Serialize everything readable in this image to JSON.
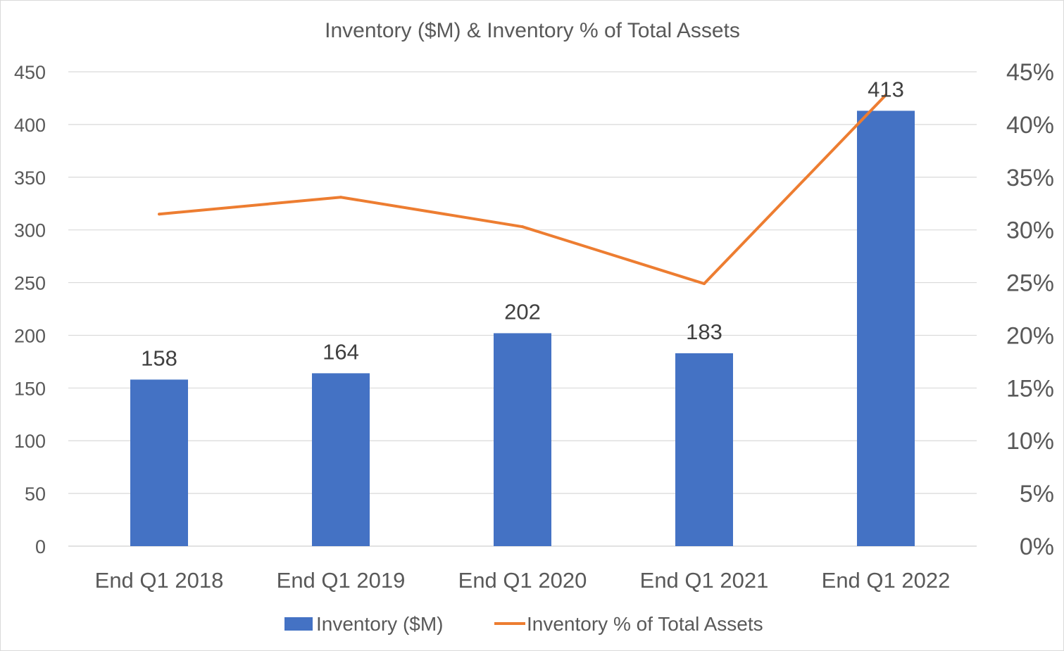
{
  "chart_data": {
    "type": "bar",
    "title": "Inventory ($M) & Inventory % of Total Assets",
    "categories": [
      "End Q1 2018",
      "End Q1 2019",
      "End Q1 2020",
      "End Q1 2021",
      "End Q1 2022"
    ],
    "series": [
      {
        "name": "Inventory ($M)",
        "type": "bar",
        "axis": "left",
        "color": "#4472C4",
        "values": [
          158,
          164,
          202,
          183,
          413
        ],
        "data_labels": [
          "158",
          "164",
          "202",
          "183",
          "413"
        ]
      },
      {
        "name": "Inventory % of Total Assets",
        "type": "line",
        "axis": "right",
        "color": "#ED7D31",
        "values": [
          0.315,
          0.331,
          0.303,
          0.249,
          0.428
        ]
      }
    ],
    "y_left": {
      "ylim": [
        0,
        450
      ],
      "ticks": [
        0,
        50,
        100,
        150,
        200,
        250,
        300,
        350,
        400,
        450
      ],
      "tick_labels": [
        "0",
        "50",
        "100",
        "150",
        "200",
        "250",
        "300",
        "350",
        "400",
        "450"
      ]
    },
    "y_right": {
      "ylim": [
        0,
        0.45
      ],
      "ticks": [
        0,
        0.05,
        0.1,
        0.15,
        0.2,
        0.25,
        0.3,
        0.35,
        0.4,
        0.45
      ],
      "tick_labels": [
        "0%",
        "5%",
        "10%",
        "15%",
        "20%",
        "25%",
        "30%",
        "35%",
        "40%",
        "45%"
      ]
    },
    "grid": true,
    "legend": "bottom",
    "gridline_color": "#d9d9d9"
  }
}
